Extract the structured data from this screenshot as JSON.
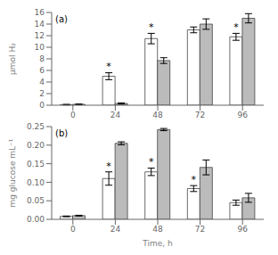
{
  "chart_data": [
    {
      "type": "bar",
      "title": "(a)",
      "ylabel": "μmol H₂",
      "categories": [
        "0",
        "24",
        "48",
        "72",
        "96"
      ],
      "series": [
        {
          "color": "#FFFFFF",
          "values": [
            0.1,
            5.0,
            11.5,
            13.0,
            11.8
          ],
          "errors": [
            0.05,
            0.6,
            0.9,
            0.5,
            0.6
          ],
          "annotations": [
            {
              "x": "24",
              "text": "*"
            },
            {
              "x": "48",
              "text": "*"
            },
            {
              "x": "96",
              "text": "*"
            }
          ]
        },
        {
          "color": "#BBBBBB",
          "values": [
            0.15,
            0.3,
            7.7,
            14.0,
            15.0
          ],
          "errors": [
            0.05,
            0.1,
            0.5,
            0.9,
            0.8
          ]
        }
      ],
      "ylim": [
        0,
        16
      ],
      "yticks": [
        0,
        2,
        4,
        6,
        8,
        10,
        12,
        14,
        16
      ],
      "grid": false
    },
    {
      "type": "bar",
      "title": "(b)",
      "ylabel": "mg glucose mL⁻¹",
      "xlabel": "Time, h",
      "categories": [
        "0",
        "24",
        "48",
        "72",
        "96"
      ],
      "series": [
        {
          "color": "#FFFFFF",
          "values": [
            0.008,
            0.11,
            0.128,
            0.083,
            0.045
          ],
          "errors": [
            0.001,
            0.018,
            0.01,
            0.008,
            0.007
          ],
          "annotations": [
            {
              "x": "24",
              "text": "*"
            },
            {
              "x": "48",
              "text": "*"
            },
            {
              "x": "72",
              "text": "*"
            }
          ]
        },
        {
          "color": "#BBBBBB",
          "values": [
            0.01,
            0.205,
            0.242,
            0.14,
            0.058
          ],
          "errors": [
            0.001,
            0.004,
            0.003,
            0.02,
            0.012
          ]
        }
      ],
      "ylim": [
        0,
        0.25
      ],
      "yticks": [
        {
          "value": 0,
          "label": "0.00"
        },
        0.05,
        {
          "value": 0.1,
          "label": "0.10"
        },
        0.15,
        {
          "value": 0.2,
          "label": "0.20"
        },
        0.25
      ],
      "grid": false
    }
  ]
}
